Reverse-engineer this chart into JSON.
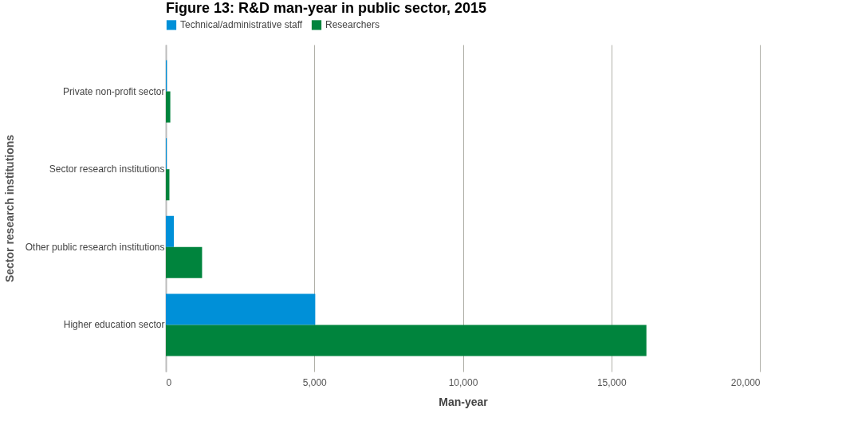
{
  "chart_data": {
    "type": "bar",
    "orientation": "horizontal",
    "title": "Figure 13: R&D man-year in public sector, 2015",
    "xlabel": "Man-year",
    "ylabel": "Sector research institutions",
    "categories": [
      "Private non-profit sector",
      "Sector research institutions",
      "Other public research institutions",
      "Higher education sector"
    ],
    "series": [
      {
        "name": "Technical/administrative staff",
        "color": "#0090d8",
        "values": [
          35,
          30,
          270,
          5030
        ]
      },
      {
        "name": "Researchers",
        "color": "#00843d",
        "values": [
          150,
          120,
          1220,
          16180
        ]
      }
    ],
    "xlim": [
      0,
      20000
    ],
    "xticks": [
      {
        "value": 0,
        "label": "0"
      },
      {
        "value": 5000,
        "label": "5,000"
      },
      {
        "value": 10000,
        "label": "10,000"
      },
      {
        "value": 15000,
        "label": "15,000"
      },
      {
        "value": 20000,
        "label": "20,000"
      }
    ],
    "grid": "x",
    "legend": "top"
  }
}
